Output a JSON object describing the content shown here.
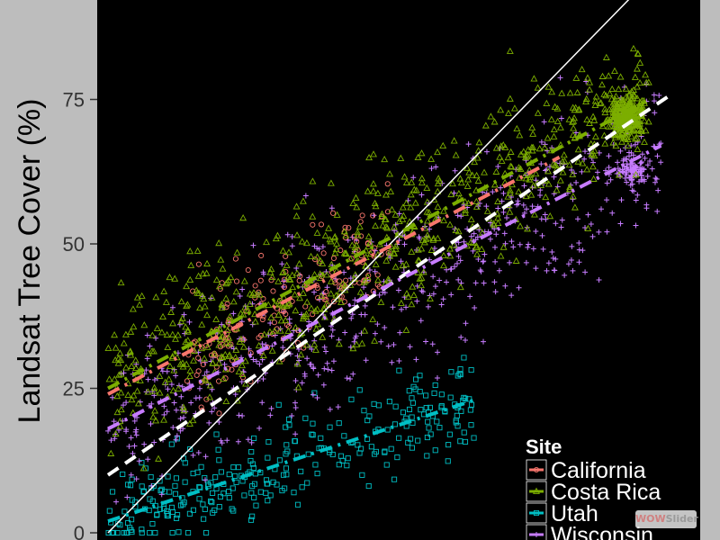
{
  "chart_data": {
    "type": "scatter",
    "ylabel": "Landsat Tree Cover (%)",
    "y_ticks": [
      "0",
      "25",
      "50",
      "75"
    ],
    "x_range": [
      0,
      100
    ],
    "y_range": [
      0,
      100
    ],
    "grid": false,
    "legend_title": "Site",
    "legend_placement": "bottom-right",
    "series": [
      {
        "name": "California",
        "color": "#f8766d",
        "marker": "circle",
        "fit": {
          "x0": 0,
          "y0": 24,
          "x1": 80,
          "y1": 65
        },
        "cloud": {
          "x0": 14,
          "x1": 50,
          "spread": 7
        }
      },
      {
        "name": "Costa Rica",
        "color": "#7cae00",
        "marker": "triangle",
        "fit": {
          "x0": 0,
          "y0": 25,
          "x1": 96,
          "y1": 75
        },
        "cloud": {
          "x0": 0,
          "x1": 96,
          "spread": 10
        }
      },
      {
        "name": "Utah",
        "color": "#00bfc4",
        "marker": "square",
        "fit": {
          "x0": 0,
          "y0": 2,
          "x1": 65,
          "y1": 23
        },
        "cloud": {
          "x0": 0,
          "x1": 65,
          "spread": 6
        }
      },
      {
        "name": "Wisconsin",
        "color": "#c77cff",
        "marker": "plus",
        "fit": {
          "x0": 0,
          "y0": 18,
          "x1": 98,
          "y1": 67
        },
        "cloud": {
          "x0": 0,
          "x1": 98,
          "spread": 11
        }
      }
    ],
    "reference_lines": [
      {
        "style": "solid",
        "color": "#ffffff",
        "x0": 0,
        "y0": 0,
        "x1": 100,
        "y1": 100
      },
      {
        "style": "dashed",
        "color": "#ffffff",
        "x0": 0,
        "y0": 10,
        "x1": 100,
        "y1": 76
      }
    ]
  },
  "watermark": {
    "part_a": "WOW",
    "part_b": "Slider"
  }
}
